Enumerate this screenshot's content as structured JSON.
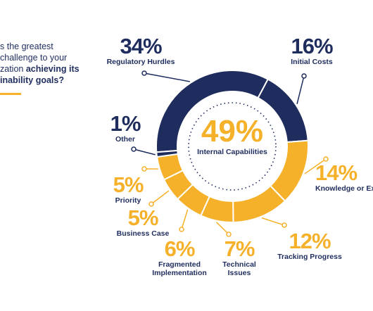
{
  "header": {
    "lines": [
      [
        "s the greatest"
      ],
      [
        "challenge to your"
      ],
      [
        "zation ",
        "achieving its"
      ],
      [
        "inability goals?"
      ]
    ]
  },
  "chart_data": {
    "type": "donut",
    "center_value": 49,
    "center_value_label": "49%",
    "center_label": "Internal Capabilities",
    "categories": [
      "Regulatory Hurdles",
      "Initial Costs",
      "Knowledge or Ex",
      "Tracking Progress",
      "Technical Issues",
      "Fragmented Implementation",
      "Business Case",
      "Priority",
      "Other"
    ],
    "values": [
      34,
      16,
      14,
      12,
      7,
      6,
      5,
      5,
      1
    ],
    "value_labels": [
      "34%",
      "16%",
      "14%",
      "12%",
      "7%",
      "6%",
      "5%",
      "5%",
      "1%"
    ],
    "colors": [
      "#1f2d5e",
      "#1f2d5e",
      "#f6b12a",
      "#f6b12a",
      "#f6b12a",
      "#f6b12a",
      "#f6b12a",
      "#f6b12a",
      "#1f2d5e"
    ]
  }
}
